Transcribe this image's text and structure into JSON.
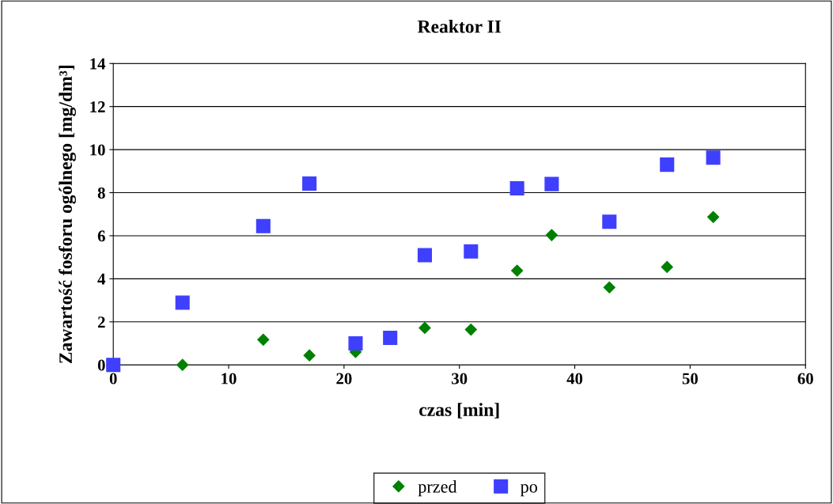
{
  "chart_data": {
    "type": "scatter",
    "title": "Reaktor II",
    "xlabel": "czas [min]",
    "ylabel": "Zawartość fosforu ogólnego [mg/dm³]",
    "x": [
      0,
      6,
      13,
      17,
      21,
      24,
      27,
      31,
      35,
      38,
      43,
      48,
      52
    ],
    "series": [
      {
        "name": "przed",
        "color": "#008000",
        "marker": "diamond",
        "values": [
          null,
          0,
          1.17,
          0.44,
          0.6,
          null,
          1.72,
          1.64,
          4.38,
          6.03,
          3.6,
          4.55,
          6.87
        ]
      },
      {
        "name": "po",
        "color": "#3f3fff",
        "marker": "square",
        "values": [
          0,
          2.89,
          6.45,
          8.42,
          1.0,
          1.26,
          5.1,
          5.27,
          8.2,
          8.4,
          6.65,
          9.3,
          9.63
        ]
      }
    ],
    "xlim": [
      0,
      60
    ],
    "xticks": [
      0,
      10,
      20,
      30,
      40,
      50,
      60
    ],
    "ylim": [
      0,
      14
    ],
    "yticks": [
      0,
      2,
      4,
      6,
      8,
      10,
      12,
      14
    ],
    "grid": "y",
    "legend": "bottom"
  }
}
